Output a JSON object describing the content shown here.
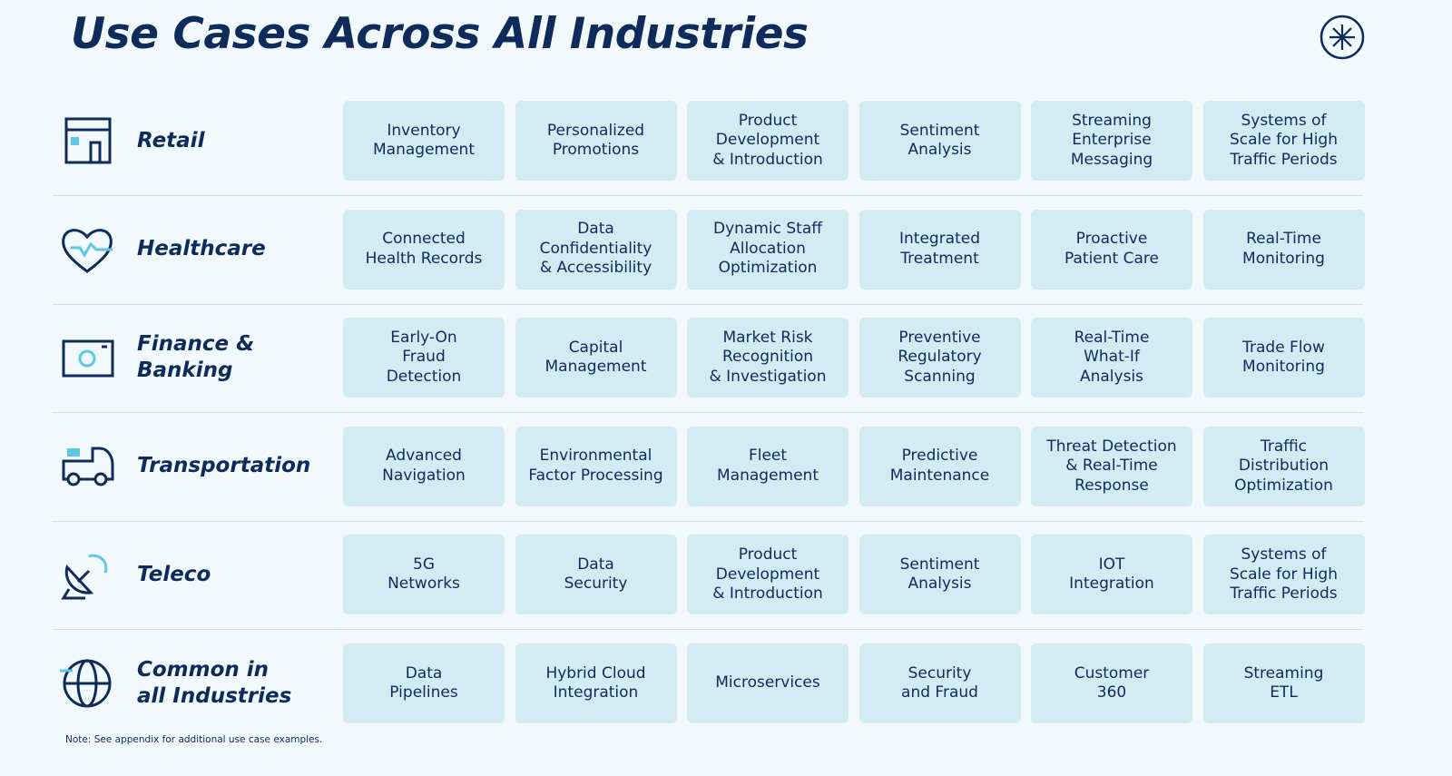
{
  "header": {
    "title": "Use Cases Across All Industries"
  },
  "rows": [
    {
      "industry": [
        "Retail"
      ],
      "use_cases": [
        [
          "Inventory",
          "Management"
        ],
        [
          "Personalized",
          "Promotions"
        ],
        [
          "Product",
          "Development",
          "& Introduction"
        ],
        [
          "Sentiment",
          "Analysis"
        ],
        [
          "Streaming",
          "Enterprise",
          "Messaging"
        ],
        [
          "Systems of",
          "Scale for High",
          "Traffic Periods"
        ]
      ]
    },
    {
      "industry": [
        "Healthcare"
      ],
      "use_cases": [
        [
          "Connected",
          "Health Records"
        ],
        [
          "Data",
          "Confidentiality",
          "& Accessibility"
        ],
        [
          "Dynamic Staff",
          "Allocation",
          "Optimization"
        ],
        [
          "Integrated",
          "Treatment"
        ],
        [
          "Proactive",
          "Patient Care"
        ],
        [
          "Real-Time",
          "Monitoring"
        ]
      ]
    },
    {
      "industry": [
        "Finance &",
        "Banking"
      ],
      "use_cases": [
        [
          "Early-On",
          "Fraud",
          "Detection"
        ],
        [
          "Capital",
          "Management"
        ],
        [
          "Market Risk",
          "Recognition",
          "& Investigation"
        ],
        [
          "Preventive",
          "Regulatory",
          "Scanning"
        ],
        [
          "Real-Time",
          "What-If",
          "Analysis"
        ],
        [
          "Trade Flow",
          "Monitoring"
        ]
      ]
    },
    {
      "industry": [
        "Transportation"
      ],
      "use_cases": [
        [
          "Advanced",
          "Navigation"
        ],
        [
          "Environmental",
          "Factor Processing"
        ],
        [
          "Fleet",
          "Management"
        ],
        [
          "Predictive",
          "Maintenance"
        ],
        [
          "Threat Detection",
          "& Real-Time",
          "Response"
        ],
        [
          "Traffic",
          "Distribution",
          "Optimization"
        ]
      ]
    },
    {
      "industry": [
        "Teleco"
      ],
      "use_cases": [
        [
          "5G",
          "Networks"
        ],
        [
          "Data",
          "Security"
        ],
        [
          "Product",
          "Development",
          "& Introduction"
        ],
        [
          "Sentiment",
          "Analysis"
        ],
        [
          "IOT",
          "Integration"
        ],
        [
          "Systems of",
          "Scale for High",
          "Traffic Periods"
        ]
      ]
    },
    {
      "industry": [
        "Common in",
        "all Industries"
      ],
      "use_cases": [
        [
          "Data",
          "Pipelines"
        ],
        [
          "Hybrid Cloud",
          "Integration"
        ],
        [
          "Microservices"
        ],
        [
          "Security",
          "and Fraud"
        ],
        [
          "Customer",
          "360"
        ],
        [
          "Streaming",
          "ETL"
        ]
      ]
    }
  ],
  "note": "Note: See appendix for additional use case examples."
}
